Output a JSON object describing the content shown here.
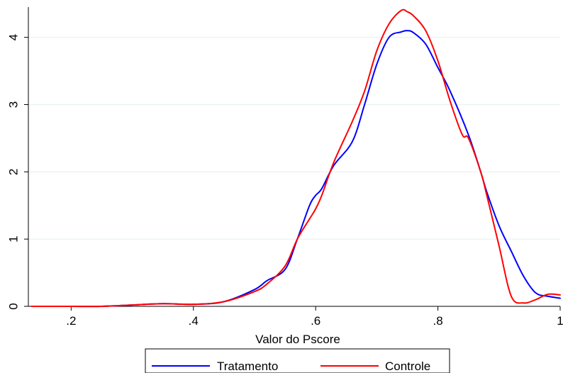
{
  "chart_data": {
    "type": "line",
    "xlabel": "Valor do Pscore",
    "ylabel": "",
    "xlim": [
      0.13,
      1.0
    ],
    "ylim": [
      0,
      4.45
    ],
    "x_ticks": [
      0.2,
      0.4,
      0.6,
      0.8,
      1.0
    ],
    "x_tick_labels": [
      ".2",
      ".4",
      ".6",
      ".8",
      "1"
    ],
    "y_ticks": [
      0,
      1,
      2,
      3,
      4
    ],
    "y_tick_labels": [
      "0",
      "1",
      "2",
      "3",
      "4"
    ],
    "grid": "horizontal",
    "legend_position": "bottom",
    "series": [
      {
        "name": "Tratamento",
        "color": "#0000ff",
        "x": [
          0.135,
          0.2,
          0.25,
          0.3,
          0.35,
          0.4,
          0.45,
          0.5,
          0.52,
          0.55,
          0.57,
          0.59,
          0.6,
          0.61,
          0.63,
          0.66,
          0.68,
          0.7,
          0.72,
          0.74,
          0.75,
          0.76,
          0.78,
          0.8,
          0.82,
          0.85,
          0.87,
          0.88,
          0.9,
          0.92,
          0.94,
          0.96,
          0.98,
          1.0
        ],
        "y": [
          0.0,
          0.0,
          0.0,
          0.02,
          0.04,
          0.03,
          0.07,
          0.25,
          0.38,
          0.55,
          1.0,
          1.5,
          1.65,
          1.75,
          2.1,
          2.45,
          3.0,
          3.6,
          4.0,
          4.08,
          4.1,
          4.07,
          3.9,
          3.55,
          3.2,
          2.55,
          2.0,
          1.7,
          1.2,
          0.82,
          0.45,
          0.2,
          0.15,
          0.12
        ]
      },
      {
        "name": "Controle",
        "color": "#ff0000",
        "x": [
          0.135,
          0.2,
          0.25,
          0.3,
          0.35,
          0.4,
          0.45,
          0.5,
          0.52,
          0.55,
          0.57,
          0.59,
          0.6,
          0.61,
          0.63,
          0.66,
          0.68,
          0.7,
          0.72,
          0.74,
          0.75,
          0.76,
          0.78,
          0.8,
          0.82,
          0.84,
          0.85,
          0.87,
          0.88,
          0.9,
          0.92,
          0.94,
          0.96,
          0.98,
          1.0
        ],
        "y": [
          0.0,
          0.0,
          0.0,
          0.02,
          0.04,
          0.03,
          0.07,
          0.22,
          0.33,
          0.6,
          1.0,
          1.3,
          1.45,
          1.65,
          2.15,
          2.75,
          3.2,
          3.8,
          4.2,
          4.4,
          4.38,
          4.32,
          4.1,
          3.65,
          3.05,
          2.55,
          2.5,
          2.0,
          1.65,
          0.9,
          0.15,
          0.05,
          0.1,
          0.18,
          0.17
        ]
      }
    ]
  }
}
